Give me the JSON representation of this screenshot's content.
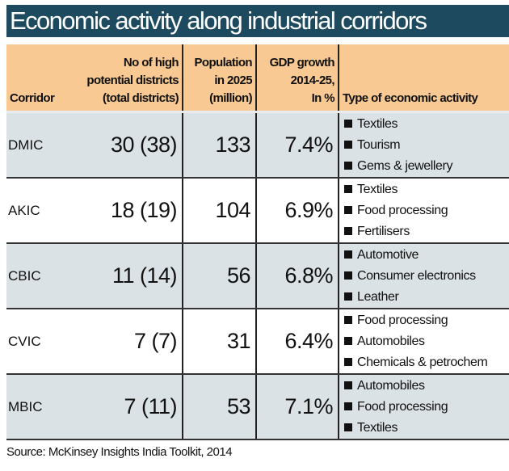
{
  "title": "Economic activity along industrial corridors",
  "header": {
    "corridor": "Corridor",
    "districts": [
      "No of high",
      "potential districts",
      "(total districts)"
    ],
    "population": [
      "Population",
      "in 2025",
      "(million)"
    ],
    "gdp": [
      "GDP growth",
      "2014-25,",
      "In %"
    ],
    "activity": "Type of economic activity"
  },
  "rows": [
    {
      "corridor": "DMIC",
      "districts": "30 (38)",
      "population": "133",
      "gdp": "7.4%",
      "activities": [
        "Textiles",
        "Tourism",
        "Gems & jewellery"
      ]
    },
    {
      "corridor": "AKIC",
      "districts": "18 (19)",
      "population": "104",
      "gdp": "6.9%",
      "activities": [
        "Textiles",
        "Food processing",
        "Fertilisers"
      ]
    },
    {
      "corridor": "CBIC",
      "districts": "11 (14)",
      "population": "56",
      "gdp": "6.8%",
      "activities": [
        "Automotive",
        "Consumer electronics",
        "Leather"
      ]
    },
    {
      "corridor": "CVIC",
      "districts": "7 (7)",
      "population": "31",
      "gdp": "6.4%",
      "activities": [
        "Food processing",
        "Automobiles",
        "Chemicals & petrochem"
      ]
    },
    {
      "corridor": "MBIC",
      "districts": "7 (11)",
      "population": "53",
      "gdp": "7.1%",
      "activities": [
        "Automobiles",
        "Food processing",
        "Textiles"
      ]
    }
  ],
  "source": "Source: McKinsey Insights India Toolkit, 2014",
  "chart_data": {
    "type": "table",
    "title": "Economic activity along industrial corridors",
    "columns": [
      "Corridor",
      "No of high potential districts (total districts)",
      "Population in 2025 (million)",
      "GDP growth 2014-25, In %",
      "Type of economic activity"
    ],
    "colors": {
      "title_bg": "#1d4a5f",
      "header_bg": "#f8c992",
      "row_alt": "#dbe2e5"
    }
  }
}
